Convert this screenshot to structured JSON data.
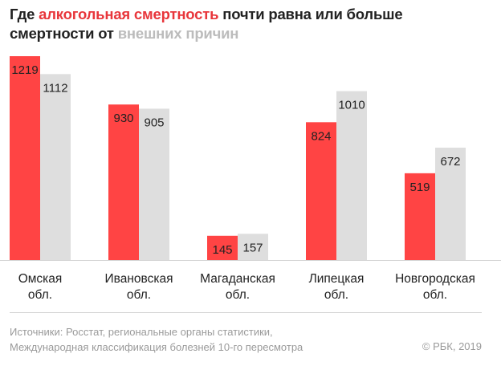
{
  "title": {
    "part1": "Где ",
    "accent": "алкогольная смертность",
    "part2": " почти равна или больше",
    "line2_start": "смертности от ",
    "muted": "внешних причин"
  },
  "footer": {
    "line1": "Источники: Росстат, региональные органы статистики,",
    "line2": "Международная классификация болезней 10-го пересмотра",
    "copyright": "© РБК, 2019"
  },
  "colors": {
    "alcohol": "#ff4444",
    "external": "#dedede",
    "accent_text": "#e8363b",
    "muted_text": "#bcbcbc",
    "axis": "#d4d4d4"
  },
  "chart_data": {
    "type": "bar",
    "categories": [
      [
        "Омская",
        "обл."
      ],
      [
        "Ивановская",
        "обл."
      ],
      [
        "Магаданская",
        "обл."
      ],
      [
        "Липецкая",
        "обл."
      ],
      [
        "Новгородская",
        "обл."
      ]
    ],
    "series": [
      {
        "name": "алкогольная смертность",
        "color": "#ff4444",
        "values": [
          1219,
          930,
          145,
          824,
          519
        ]
      },
      {
        "name": "внешних причин",
        "color": "#dedede",
        "values": [
          1112,
          905,
          157,
          1010,
          672
        ]
      }
    ],
    "ylim": [
      0,
      1219
    ],
    "grid": false,
    "legend": "none"
  }
}
